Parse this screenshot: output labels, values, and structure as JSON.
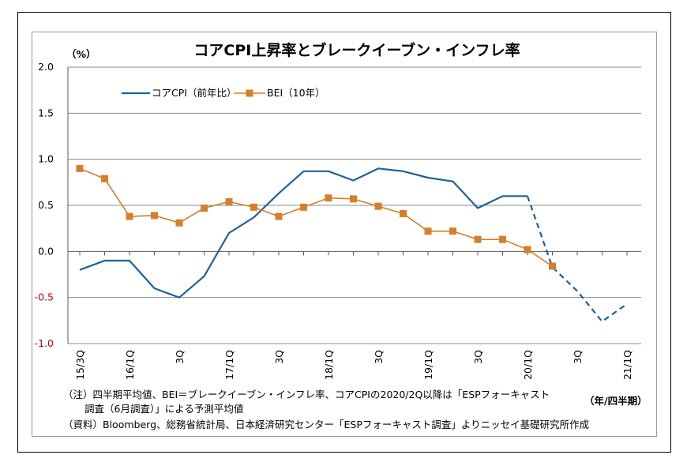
{
  "chart_data": {
    "type": "line",
    "title": "コアCPI上昇率とブレークイーブン・インフレ率",
    "y_unit": "（%）",
    "x_unit": "（年/四半期）",
    "ylim": [
      -1.0,
      2.0
    ],
    "yticks": [
      "2.0",
      "1.5",
      "1.0",
      "0.5",
      "0.0",
      "-0.5",
      "-1.0"
    ],
    "ytick_values": [
      2.0,
      1.5,
      1.0,
      0.5,
      0.0,
      -0.5,
      -1.0
    ],
    "grid": true,
    "legend_position": "top-left",
    "x": [
      "15/3Q",
      "4Q",
      "16/1Q",
      "2Q",
      "3Q",
      "4Q",
      "17/1Q",
      "2Q",
      "3Q",
      "4Q",
      "18/1Q",
      "2Q",
      "3Q",
      "4Q",
      "19/1Q",
      "2Q",
      "3Q",
      "4Q",
      "20/1Q",
      "2Q",
      "3Q",
      "4Q",
      "21/1Q"
    ],
    "xtick_labels": [
      "15/3Q",
      "",
      "16/1Q",
      "",
      "3Q",
      "",
      "17/1Q",
      "",
      "3Q",
      "",
      "18/1Q",
      "",
      "3Q",
      "",
      "19/1Q",
      "",
      "3Q",
      "",
      "20/1Q",
      "",
      "3Q",
      "",
      "21/1Q"
    ],
    "series": [
      {
        "name": "コアCPI（前年比）",
        "color": "#1f6198",
        "marker": "none",
        "values": [
          -0.2,
          -0.1,
          -0.1,
          -0.4,
          -0.5,
          -0.27,
          0.2,
          0.37,
          0.63,
          0.87,
          0.87,
          0.77,
          0.9,
          0.87,
          0.8,
          0.76,
          0.47,
          0.6,
          0.6,
          -0.17,
          -0.43,
          -0.76,
          -0.57
        ],
        "forecast_from_index": 18
      },
      {
        "name": "BEI（10年）",
        "color": "#d67f2a",
        "marker": "square",
        "values": [
          0.9,
          0.79,
          0.38,
          0.39,
          0.31,
          0.47,
          0.54,
          0.48,
          0.38,
          0.48,
          0.58,
          0.57,
          0.49,
          0.41,
          0.22,
          0.22,
          0.13,
          0.13,
          0.02,
          -0.16,
          null,
          null,
          null
        ]
      }
    ]
  },
  "notes": {
    "note1_line1": "（注）四半期平均値、BEI＝ブレークイーブン・インフレ率、コアCPIの2020/2Q以降は「ESPフォーキャスト",
    "note1_line2": "調査（6月調査）」による予測平均値",
    "source": "（資料）Bloomberg、総務省統計局、日本経済研究センター「ESPフォーキャスト調査」よりニッセイ基礎研究所作成"
  }
}
